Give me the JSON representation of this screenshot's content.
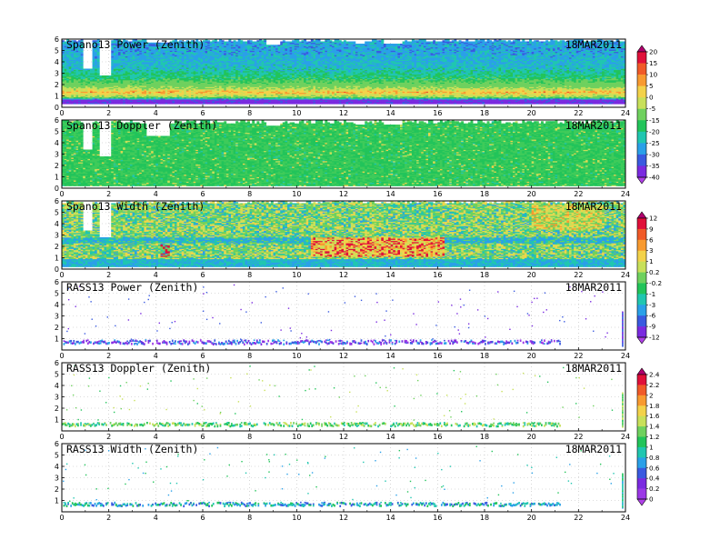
{
  "figure": {
    "date_label": "18MAR2011"
  },
  "chart_data": [
    {
      "type": "heatmap",
      "title": "Spano13 Power (Zenith)",
      "date": "18MAR2011",
      "xlim": [
        0,
        24
      ],
      "ylim": [
        0,
        6
      ],
      "x_ticks": [
        0,
        2,
        4,
        6,
        8,
        10,
        12,
        14,
        16,
        18,
        20,
        22,
        24
      ],
      "y_ticks": [
        0,
        1,
        2,
        3,
        4,
        5,
        6
      ],
      "colorbar": "power",
      "pattern": "dense",
      "profile": [
        {
          "h": 0.6,
          "v": -38
        },
        {
          "h": 0.9,
          "v": -5
        },
        {
          "h": 1.3,
          "v": 3
        },
        {
          "h": 1.8,
          "v": -8
        },
        {
          "h": 2.5,
          "v": -18
        },
        {
          "h": 3.5,
          "v": -24
        },
        {
          "h": 5.0,
          "v": -27
        }
      ],
      "gaps": [
        {
          "x": [
            0.8,
            1.3
          ],
          "y": [
            3.4,
            6
          ]
        },
        {
          "x": [
            1.6,
            2.1
          ],
          "y": [
            2.8,
            6
          ]
        },
        {
          "x": [
            3.6,
            4.6
          ],
          "y": [
            5.6,
            6
          ]
        },
        {
          "x": [
            8.6,
            9.2
          ],
          "y": [
            5.4,
            6
          ]
        },
        {
          "x": [
            12.4,
            12.8
          ],
          "y": [
            5.5,
            6
          ]
        },
        {
          "x": [
            13.6,
            14.4
          ],
          "y": [
            5.5,
            6
          ]
        }
      ]
    },
    {
      "type": "heatmap",
      "title": "Spano13 Doppler (Zenith)",
      "date": "18MAR2011",
      "xlim": [
        0,
        24
      ],
      "ylim": [
        0,
        6
      ],
      "x_ticks": [
        0,
        2,
        4,
        6,
        8,
        10,
        12,
        14,
        16,
        18,
        20,
        22,
        24
      ],
      "y_ticks": [
        0,
        1,
        2,
        3,
        4,
        5,
        6
      ],
      "colorbar": "power",
      "pattern": "doppler",
      "gaps": [
        {
          "x": [
            0.8,
            1.3
          ],
          "y": [
            3.4,
            6
          ]
        },
        {
          "x": [
            1.6,
            2.1
          ],
          "y": [
            2.8,
            6
          ]
        },
        {
          "x": [
            3.6,
            4.6
          ],
          "y": [
            4.6,
            6
          ]
        },
        {
          "x": [
            8.6,
            9.2
          ],
          "y": [
            5.4,
            6
          ]
        },
        {
          "x": [
            12.4,
            12.8
          ],
          "y": [
            5.5,
            6
          ]
        },
        {
          "x": [
            13.6,
            14.4
          ],
          "y": [
            5.5,
            6
          ]
        }
      ]
    },
    {
      "type": "heatmap",
      "title": "Spano13 Width (Zenith)",
      "date": "18MAR2011",
      "xlim": [
        0,
        24
      ],
      "ylim": [
        0,
        6
      ],
      "x_ticks": [
        0,
        2,
        4,
        6,
        8,
        10,
        12,
        14,
        16,
        18,
        20,
        22,
        24
      ],
      "y_ticks": [
        0,
        1,
        2,
        3,
        4,
        5,
        6
      ],
      "colorbar": "width",
      "pattern": "width",
      "gaps": [
        {
          "x": [
            0.8,
            1.3
          ],
          "y": [
            3.4,
            6
          ]
        },
        {
          "x": [
            1.6,
            2.1
          ],
          "y": [
            2.8,
            6
          ]
        }
      ]
    },
    {
      "type": "heatmap",
      "title": "RASS13 Power (Zenith)",
      "date": "18MAR2011",
      "xlim": [
        0,
        24
      ],
      "ylim": [
        0,
        6
      ],
      "x_ticks": [
        0,
        2,
        4,
        6,
        8,
        10,
        12,
        14,
        16,
        18,
        20,
        22,
        24
      ],
      "y_ticks": [
        1,
        2,
        3,
        4,
        5,
        6
      ],
      "colorbar": "width",
      "pattern": "rass-power",
      "band_height": [
        0.5,
        0.85
      ]
    },
    {
      "type": "heatmap",
      "title": "RASS13 Doppler (Zenith)",
      "date": "18MAR2011",
      "xlim": [
        0,
        24
      ],
      "ylim": [
        0,
        6
      ],
      "x_ticks": [
        0,
        2,
        4,
        6,
        8,
        10,
        12,
        14,
        16,
        18,
        20,
        22,
        24
      ],
      "y_ticks": [
        1,
        2,
        3,
        4,
        5,
        6
      ],
      "colorbar": "rass",
      "pattern": "rass-doppler",
      "band_height": [
        0.4,
        0.7
      ]
    },
    {
      "type": "heatmap",
      "title": "RASS13 Width (Zenith)",
      "date": "18MAR2011",
      "xlim": [
        0,
        24
      ],
      "ylim": [
        0,
        6
      ],
      "x_ticks": [
        0,
        2,
        4,
        6,
        8,
        10,
        12,
        14,
        16,
        18,
        20,
        22,
        24
      ],
      "y_ticks": [
        1,
        2,
        3,
        4,
        5,
        6
      ],
      "colorbar": "rass",
      "pattern": "rass-width",
      "band_height": [
        0.5,
        0.8
      ]
    }
  ],
  "colorbars": {
    "power": {
      "labels": [
        "20",
        "15",
        "10",
        "5",
        "0",
        "-5",
        "-15",
        "-20",
        "-25",
        "-30",
        "-35",
        "-40"
      ],
      "colors": [
        "#b0006e",
        "#e0103a",
        "#f05a28",
        "#f89a30",
        "#f3d24a",
        "#c8e05a",
        "#6fd15e",
        "#22c45a",
        "#20c6b0",
        "#2aa0e8",
        "#3a5ae0",
        "#7a2ae0",
        "#b040e8"
      ]
    },
    "width": {
      "labels": [
        "12",
        "9",
        "6",
        "3",
        "1",
        "0.2",
        "-0.2",
        "-1",
        "-3",
        "-6",
        "-9",
        "-12"
      ],
      "colors": [
        "#b0006e",
        "#e0103a",
        "#f05a28",
        "#f89a30",
        "#f3d24a",
        "#c8e05a",
        "#6fd15e",
        "#22c45a",
        "#20c6b0",
        "#2aa0e8",
        "#3a5ae0",
        "#7a2ae0",
        "#b040e8"
      ]
    },
    "rass": {
      "labels": [
        "2.4",
        "2.2",
        "2",
        "1.8",
        "1.6",
        "1.4",
        "1.2",
        "1",
        "0.8",
        "0.6",
        "0.4",
        "0.2",
        "0"
      ],
      "colors": [
        "#b0006e",
        "#e0103a",
        "#f05a28",
        "#f89a30",
        "#f3d24a",
        "#c8e05a",
        "#6fd15e",
        "#22c45a",
        "#20c6b0",
        "#2aa0e8",
        "#3a5ae0",
        "#7a2ae0",
        "#9b38e6",
        "#b040e8"
      ]
    }
  }
}
